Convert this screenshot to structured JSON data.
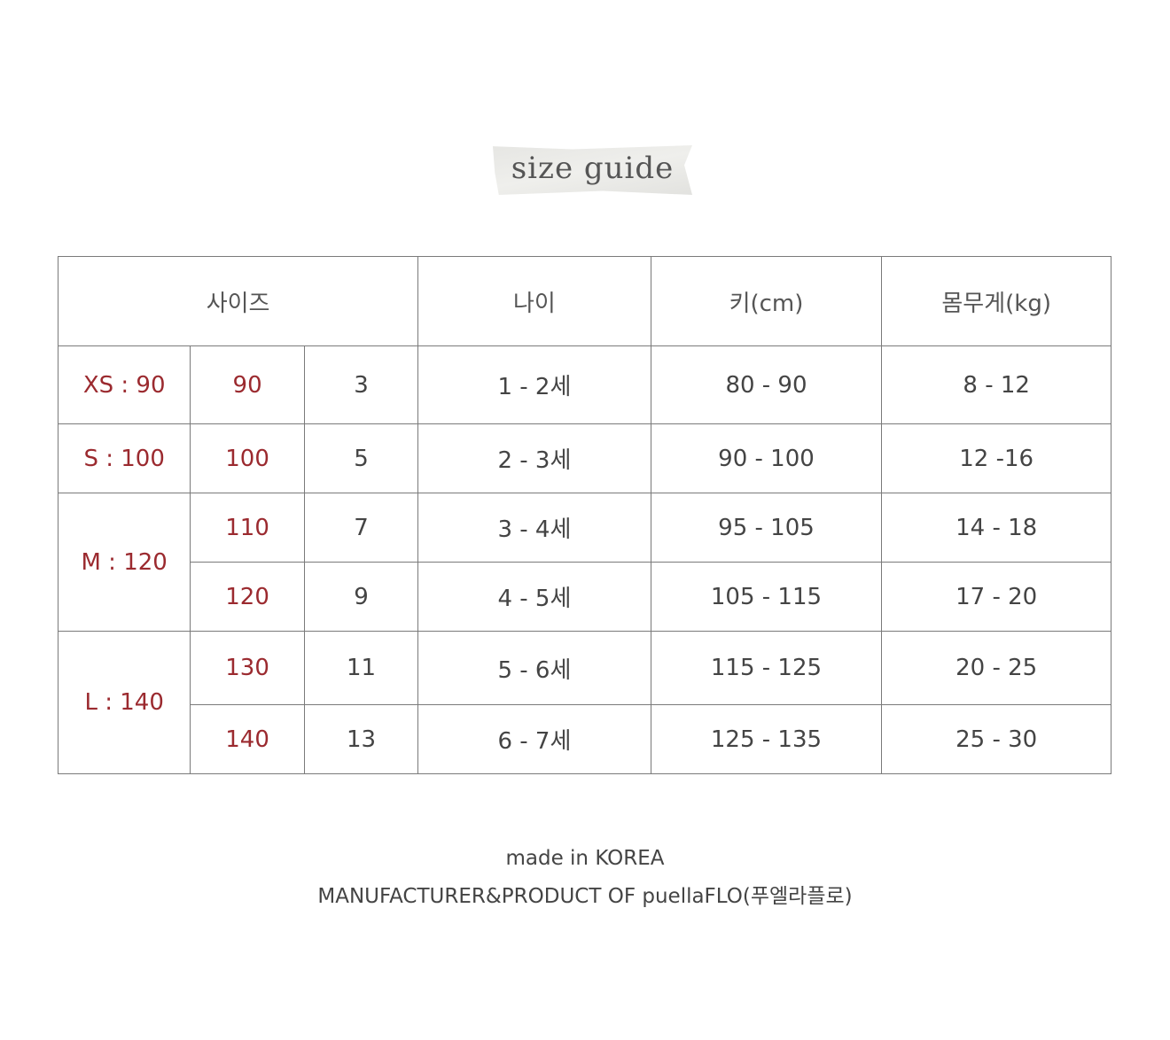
{
  "title": "size guide",
  "colors": {
    "accent": "#9b2a2f",
    "text": "#444444",
    "border": "#7a7a7a"
  },
  "table": {
    "headers": [
      "사이즈",
      "나이",
      "키(cm)",
      "몸무게(kg)"
    ],
    "groups": [
      "XS : 90",
      "S : 100",
      "M : 120",
      "L : 140"
    ],
    "rows": [
      {
        "size": "90",
        "num": "3",
        "age": "1 - 2세",
        "height": "80 - 90",
        "weight": "8 - 12"
      },
      {
        "size": "100",
        "num": "5",
        "age": "2 - 3세",
        "height": "90 - 100",
        "weight": "12 -16"
      },
      {
        "size": "110",
        "num": "7",
        "age": "3 - 4세",
        "height": "95 - 105",
        "weight": "14 - 18"
      },
      {
        "size": "120",
        "num": "9",
        "age": "4 - 5세",
        "height": "105 - 115",
        "weight": "17 - 20"
      },
      {
        "size": "130",
        "num": "11",
        "age": "5 - 6세",
        "height": "115 - 125",
        "weight": "20 - 25"
      },
      {
        "size": "140",
        "num": "13",
        "age": "6 - 7세",
        "height": "125 - 135",
        "weight": "25 - 30"
      }
    ]
  },
  "footer": {
    "line1": "made in KOREA",
    "line2": "MANUFACTURER&PRODUCT OF puellaFLO(푸엘라플로)"
  }
}
